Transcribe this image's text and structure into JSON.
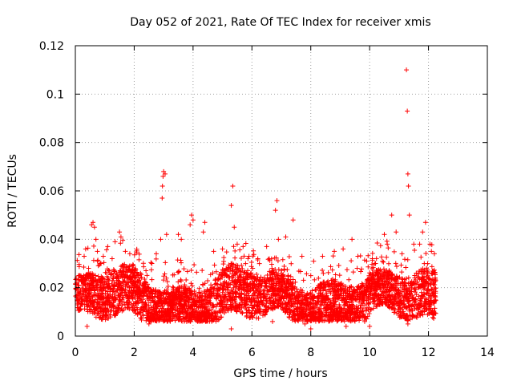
{
  "chart_data": {
    "type": "scatter",
    "title": "Day 052 of 2021, Rate Of TEC Index for receiver xmis",
    "xlabel": "GPS time / hours",
    "ylabel": "ROTI / TECUs",
    "xlim": [
      0,
      14
    ],
    "ylim": [
      0,
      0.12
    ],
    "x_ticks": [
      "0",
      "2",
      "4",
      "6",
      "8",
      "10",
      "12",
      "14"
    ],
    "y_ticks": [
      "0",
      "0.02",
      "0.04",
      "0.06",
      "0.08",
      "0.1",
      "0.12"
    ],
    "grid": true,
    "marker": "+",
    "color": "#ff0000",
    "x_range_of_data": [
      0,
      12.25
    ],
    "points": [
      [
        0.05,
        0.022
      ],
      [
        0.1,
        0.021
      ],
      [
        0.2,
        0.023
      ],
      [
        0.3,
        0.033
      ],
      [
        0.35,
        0.036
      ],
      [
        0.45,
        0.028
      ],
      [
        0.55,
        0.046
      ],
      [
        0.6,
        0.047
      ],
      [
        0.65,
        0.045
      ],
      [
        0.7,
        0.04
      ],
      [
        0.75,
        0.035
      ],
      [
        0.85,
        0.03
      ],
      [
        0.95,
        0.033
      ],
      [
        1.1,
        0.037
      ],
      [
        1.25,
        0.032
      ],
      [
        1.35,
        0.039
      ],
      [
        1.5,
        0.043
      ],
      [
        1.55,
        0.041
      ],
      [
        1.7,
        0.035
      ],
      [
        1.85,
        0.034
      ],
      [
        2.0,
        0.026
      ],
      [
        2.2,
        0.024
      ],
      [
        2.4,
        0.027
      ],
      [
        2.6,
        0.03
      ],
      [
        2.75,
        0.034
      ],
      [
        2.9,
        0.04
      ],
      [
        2.95,
        0.057
      ],
      [
        2.96,
        0.062
      ],
      [
        2.98,
        0.066
      ],
      [
        3.0,
        0.068
      ],
      [
        3.05,
        0.067
      ],
      [
        3.1,
        0.042
      ],
      [
        3.5,
        0.042
      ],
      [
        3.6,
        0.04
      ],
      [
        3.9,
        0.046
      ],
      [
        3.95,
        0.05
      ],
      [
        4.0,
        0.048
      ],
      [
        4.35,
        0.043
      ],
      [
        4.4,
        0.047
      ],
      [
        4.7,
        0.035
      ],
      [
        5.0,
        0.036
      ],
      [
        5.3,
        0.054
      ],
      [
        5.35,
        0.062
      ],
      [
        5.4,
        0.045
      ],
      [
        5.5,
        0.038
      ],
      [
        5.7,
        0.037
      ],
      [
        5.9,
        0.033
      ],
      [
        6.2,
        0.032
      ],
      [
        6.5,
        0.037
      ],
      [
        6.8,
        0.052
      ],
      [
        6.85,
        0.056
      ],
      [
        6.9,
        0.04
      ],
      [
        7.15,
        0.041
      ],
      [
        7.4,
        0.048
      ],
      [
        7.7,
        0.033
      ],
      [
        8.0,
        0.025
      ],
      [
        8.4,
        0.033
      ],
      [
        8.8,
        0.035
      ],
      [
        9.1,
        0.036
      ],
      [
        9.4,
        0.04
      ],
      [
        9.6,
        0.033
      ],
      [
        9.9,
        0.031
      ],
      [
        10.2,
        0.03
      ],
      [
        10.5,
        0.042
      ],
      [
        10.6,
        0.038
      ],
      [
        10.75,
        0.05
      ],
      [
        10.9,
        0.043
      ],
      [
        11.1,
        0.034
      ],
      [
        11.25,
        0.11
      ],
      [
        11.28,
        0.093
      ],
      [
        11.3,
        0.067
      ],
      [
        11.32,
        0.062
      ],
      [
        11.35,
        0.05
      ],
      [
        11.5,
        0.038
      ],
      [
        11.7,
        0.038
      ],
      [
        11.8,
        0.043
      ],
      [
        11.9,
        0.047
      ],
      [
        12.05,
        0.038
      ],
      [
        12.1,
        0.035
      ],
      [
        12.2,
        0.034
      ],
      [
        0.4,
        0.004
      ],
      [
        2.5,
        0.005
      ],
      [
        5.3,
        0.003
      ],
      [
        8.0,
        0.003
      ],
      [
        9.2,
        0.004
      ],
      [
        10.0,
        0.004
      ],
      [
        11.3,
        0.005
      ],
      [
        3.5,
        0.007
      ],
      [
        6.7,
        0.006
      ],
      [
        7.8,
        0.005
      ]
    ]
  }
}
